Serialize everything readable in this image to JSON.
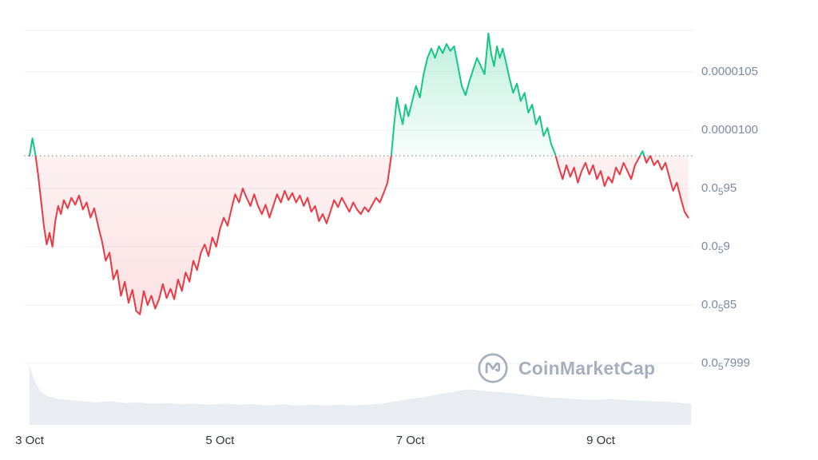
{
  "watermark": {
    "text": "CoinMarketCap"
  },
  "colors": {
    "up": "#16c784",
    "down": "#ea3943",
    "grid": "#eff2f5",
    "baseline": "#9099a9",
    "axis_label": "#7c8aa0",
    "x_label": "#30353f",
    "volume": "#e9edf1",
    "background": "#ffffff",
    "watermark": "#a7afbd"
  },
  "chart_data": {
    "type": "line",
    "title": "",
    "xlabel": "",
    "ylabel": "",
    "y_value_unit": "1e-6 USD",
    "grid": true,
    "legend": "none",
    "baseline": 9.78,
    "ylim": [
      7.7,
      10.95
    ],
    "x_ticks": [
      {
        "x": 0,
        "label": "3 Oct"
      },
      {
        "x": 2,
        "label": "5 Oct"
      },
      {
        "x": 4,
        "label": "7 Oct"
      },
      {
        "x": 6,
        "label": "9 Oct"
      }
    ],
    "y_ticks": [
      {
        "value": 10.5,
        "pre": "0.0000105",
        "sub": "",
        "post": ""
      },
      {
        "value": 10.0,
        "pre": "0.0000100",
        "sub": "",
        "post": ""
      },
      {
        "value": 9.5,
        "pre": "0.0",
        "sub": "5",
        "post": "95"
      },
      {
        "value": 9.0,
        "pre": "0.0",
        "sub": "5",
        "post": "9"
      },
      {
        "value": 8.5,
        "pre": "0.0",
        "sub": "5",
        "post": "85"
      },
      {
        "value": 8.0,
        "pre": "0.0",
        "sub": "5",
        "post": "7999"
      }
    ],
    "series": [
      {
        "name": "price",
        "points": [
          [
            0.0,
            9.78
          ],
          [
            0.03,
            9.93
          ],
          [
            0.06,
            9.8
          ],
          [
            0.09,
            9.62
          ],
          [
            0.12,
            9.4
          ],
          [
            0.15,
            9.18
          ],
          [
            0.18,
            9.02
          ],
          [
            0.21,
            9.12
          ],
          [
            0.24,
            9.0
          ],
          [
            0.27,
            9.22
          ],
          [
            0.3,
            9.35
          ],
          [
            0.33,
            9.28
          ],
          [
            0.36,
            9.4
          ],
          [
            0.4,
            9.33
          ],
          [
            0.44,
            9.42
          ],
          [
            0.48,
            9.36
          ],
          [
            0.52,
            9.44
          ],
          [
            0.56,
            9.32
          ],
          [
            0.6,
            9.38
          ],
          [
            0.64,
            9.25
          ],
          [
            0.68,
            9.33
          ],
          [
            0.72,
            9.18
          ],
          [
            0.76,
            9.05
          ],
          [
            0.8,
            8.88
          ],
          [
            0.84,
            8.95
          ],
          [
            0.88,
            8.72
          ],
          [
            0.92,
            8.8
          ],
          [
            0.96,
            8.58
          ],
          [
            1.0,
            8.7
          ],
          [
            1.04,
            8.52
          ],
          [
            1.08,
            8.63
          ],
          [
            1.12,
            8.45
          ],
          [
            1.16,
            8.42
          ],
          [
            1.2,
            8.62
          ],
          [
            1.24,
            8.5
          ],
          [
            1.28,
            8.58
          ],
          [
            1.32,
            8.47
          ],
          [
            1.36,
            8.55
          ],
          [
            1.4,
            8.68
          ],
          [
            1.44,
            8.56
          ],
          [
            1.48,
            8.64
          ],
          [
            1.52,
            8.55
          ],
          [
            1.56,
            8.72
          ],
          [
            1.6,
            8.62
          ],
          [
            1.64,
            8.78
          ],
          [
            1.68,
            8.7
          ],
          [
            1.72,
            8.88
          ],
          [
            1.76,
            8.8
          ],
          [
            1.8,
            8.95
          ],
          [
            1.84,
            9.02
          ],
          [
            1.88,
            8.92
          ],
          [
            1.92,
            9.08
          ],
          [
            1.96,
            9.0
          ],
          [
            2.0,
            9.15
          ],
          [
            2.04,
            9.25
          ],
          [
            2.08,
            9.18
          ],
          [
            2.12,
            9.32
          ],
          [
            2.16,
            9.45
          ],
          [
            2.2,
            9.38
          ],
          [
            2.24,
            9.5
          ],
          [
            2.28,
            9.42
          ],
          [
            2.32,
            9.35
          ],
          [
            2.36,
            9.45
          ],
          [
            2.4,
            9.35
          ],
          [
            2.44,
            9.28
          ],
          [
            2.48,
            9.36
          ],
          [
            2.52,
            9.25
          ],
          [
            2.56,
            9.35
          ],
          [
            2.6,
            9.45
          ],
          [
            2.64,
            9.38
          ],
          [
            2.68,
            9.48
          ],
          [
            2.72,
            9.4
          ],
          [
            2.76,
            9.46
          ],
          [
            2.8,
            9.38
          ],
          [
            2.84,
            9.44
          ],
          [
            2.88,
            9.35
          ],
          [
            2.92,
            9.42
          ],
          [
            2.96,
            9.3
          ],
          [
            3.0,
            9.35
          ],
          [
            3.04,
            9.22
          ],
          [
            3.08,
            9.28
          ],
          [
            3.12,
            9.2
          ],
          [
            3.16,
            9.3
          ],
          [
            3.2,
            9.4
          ],
          [
            3.24,
            9.34
          ],
          [
            3.28,
            9.42
          ],
          [
            3.32,
            9.36
          ],
          [
            3.36,
            9.3
          ],
          [
            3.4,
            9.38
          ],
          [
            3.44,
            9.32
          ],
          [
            3.48,
            9.28
          ],
          [
            3.52,
            9.34
          ],
          [
            3.56,
            9.3
          ],
          [
            3.6,
            9.36
          ],
          [
            3.64,
            9.42
          ],
          [
            3.68,
            9.38
          ],
          [
            3.72,
            9.46
          ],
          [
            3.76,
            9.55
          ],
          [
            3.8,
            9.78
          ],
          [
            3.83,
            10.05
          ],
          [
            3.86,
            10.28
          ],
          [
            3.89,
            10.15
          ],
          [
            3.92,
            10.05
          ],
          [
            3.95,
            10.22
          ],
          [
            3.98,
            10.12
          ],
          [
            4.02,
            10.25
          ],
          [
            4.06,
            10.38
          ],
          [
            4.1,
            10.28
          ],
          [
            4.14,
            10.48
          ],
          [
            4.18,
            10.62
          ],
          [
            4.22,
            10.7
          ],
          [
            4.26,
            10.62
          ],
          [
            4.3,
            10.72
          ],
          [
            4.34,
            10.66
          ],
          [
            4.38,
            10.74
          ],
          [
            4.42,
            10.68
          ],
          [
            4.46,
            10.72
          ],
          [
            4.5,
            10.55
          ],
          [
            4.54,
            10.38
          ],
          [
            4.58,
            10.3
          ],
          [
            4.62,
            10.42
          ],
          [
            4.66,
            10.52
          ],
          [
            4.7,
            10.62
          ],
          [
            4.74,
            10.55
          ],
          [
            4.78,
            10.48
          ],
          [
            4.82,
            10.83
          ],
          [
            4.85,
            10.65
          ],
          [
            4.88,
            10.55
          ],
          [
            4.91,
            10.72
          ],
          [
            4.94,
            10.62
          ],
          [
            4.97,
            10.7
          ],
          [
            5.0,
            10.6
          ],
          [
            5.04,
            10.45
          ],
          [
            5.08,
            10.32
          ],
          [
            5.12,
            10.4
          ],
          [
            5.16,
            10.25
          ],
          [
            5.2,
            10.32
          ],
          [
            5.24,
            10.15
          ],
          [
            5.28,
            10.22
          ],
          [
            5.32,
            10.05
          ],
          [
            5.36,
            10.12
          ],
          [
            5.4,
            9.95
          ],
          [
            5.44,
            10.02
          ],
          [
            5.48,
            9.88
          ],
          [
            5.52,
            9.8
          ],
          [
            5.56,
            9.68
          ],
          [
            5.6,
            9.58
          ],
          [
            5.64,
            9.7
          ],
          [
            5.68,
            9.6
          ],
          [
            5.72,
            9.68
          ],
          [
            5.76,
            9.55
          ],
          [
            5.8,
            9.65
          ],
          [
            5.84,
            9.72
          ],
          [
            5.88,
            9.62
          ],
          [
            5.92,
            9.7
          ],
          [
            5.96,
            9.58
          ],
          [
            6.0,
            9.65
          ],
          [
            6.04,
            9.52
          ],
          [
            6.08,
            9.6
          ],
          [
            6.12,
            9.55
          ],
          [
            6.16,
            9.68
          ],
          [
            6.2,
            9.62
          ],
          [
            6.24,
            9.72
          ],
          [
            6.28,
            9.65
          ],
          [
            6.32,
            9.58
          ],
          [
            6.36,
            9.7
          ],
          [
            6.4,
            9.76
          ],
          [
            6.44,
            9.82
          ],
          [
            6.48,
            9.72
          ],
          [
            6.52,
            9.78
          ],
          [
            6.56,
            9.7
          ],
          [
            6.6,
            9.74
          ],
          [
            6.64,
            9.66
          ],
          [
            6.68,
            9.72
          ],
          [
            6.72,
            9.6
          ],
          [
            6.76,
            9.48
          ],
          [
            6.8,
            9.55
          ],
          [
            6.84,
            9.42
          ],
          [
            6.88,
            9.3
          ],
          [
            6.92,
            9.25
          ]
        ]
      }
    ],
    "volume_relative": [
      [
        0.0,
        1.0
      ],
      [
        0.06,
        0.72
      ],
      [
        0.12,
        0.55
      ],
      [
        0.2,
        0.48
      ],
      [
        0.3,
        0.44
      ],
      [
        0.4,
        0.42
      ],
      [
        0.55,
        0.4
      ],
      [
        0.7,
        0.38
      ],
      [
        0.85,
        0.4
      ],
      [
        1.0,
        0.37
      ],
      [
        1.15,
        0.38
      ],
      [
        1.3,
        0.36
      ],
      [
        1.45,
        0.37
      ],
      [
        1.6,
        0.35
      ],
      [
        1.75,
        0.36
      ],
      [
        1.9,
        0.34
      ],
      [
        2.05,
        0.36
      ],
      [
        2.2,
        0.34
      ],
      [
        2.35,
        0.35
      ],
      [
        2.5,
        0.33
      ],
      [
        2.65,
        0.35
      ],
      [
        2.8,
        0.33
      ],
      [
        2.95,
        0.34
      ],
      [
        3.1,
        0.33
      ],
      [
        3.25,
        0.34
      ],
      [
        3.4,
        0.33
      ],
      [
        3.55,
        0.34
      ],
      [
        3.7,
        0.36
      ],
      [
        3.85,
        0.4
      ],
      [
        4.0,
        0.44
      ],
      [
        4.15,
        0.47
      ],
      [
        4.3,
        0.52
      ],
      [
        4.45,
        0.56
      ],
      [
        4.6,
        0.6
      ],
      [
        4.75,
        0.58
      ],
      [
        4.9,
        0.56
      ],
      [
        5.05,
        0.54
      ],
      [
        5.2,
        0.51
      ],
      [
        5.35,
        0.48
      ],
      [
        5.5,
        0.46
      ],
      [
        5.65,
        0.45
      ],
      [
        5.8,
        0.43
      ],
      [
        5.95,
        0.42
      ],
      [
        6.1,
        0.44
      ],
      [
        6.25,
        0.42
      ],
      [
        6.4,
        0.41
      ],
      [
        6.55,
        0.4
      ],
      [
        6.7,
        0.39
      ],
      [
        6.85,
        0.37
      ],
      [
        6.95,
        0.36
      ]
    ]
  }
}
